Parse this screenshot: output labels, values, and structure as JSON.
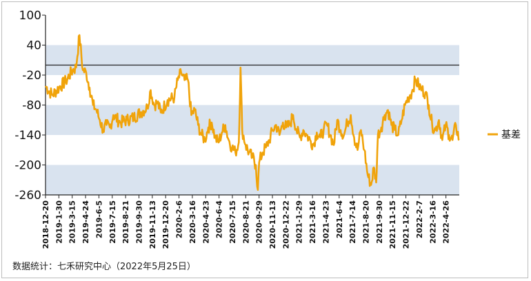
{
  "chart_data": {
    "type": "line",
    "title": "",
    "xlabel": "",
    "ylabel": "",
    "ylim": [
      -260,
      100
    ],
    "yticks": [
      100,
      40,
      -20,
      -80,
      -140,
      -200,
      -260
    ],
    "ref_line": 0,
    "grid": "alternating horizontal bands",
    "legend_position": "right",
    "x_tick_labels": [
      "2018-12-20",
      "2019-1-30",
      "2019-3-15",
      "2019-4-24",
      "2019-6-5",
      "2019-7-15",
      "2019-8-21",
      "2019-9-30",
      "2019-11-13",
      "2019-12-20",
      "2020-2-6",
      "2020-3-16",
      "2020-4-23",
      "2020-6-4",
      "2020-7-15",
      "2020-8-21",
      "2020-9-29",
      "2020-11-13",
      "2020-12-22",
      "2021-1-29",
      "2021-3-16",
      "2021-4-23",
      "2021-6-4",
      "2021-7-14",
      "2021-8-20",
      "2021-9-30",
      "2021-11-15",
      "2021-12-22",
      "2022-2-7",
      "2022-3-16",
      "2022-4-26"
    ],
    "series": [
      {
        "name": "基差",
        "color": "#f0a30a",
        "anchors": [
          [
            0,
            -42
          ],
          [
            2,
            -60
          ],
          [
            4,
            -45
          ],
          [
            6,
            -32
          ],
          [
            8,
            -10
          ],
          [
            9,
            -5
          ],
          [
            10,
            60
          ],
          [
            11,
            -10
          ],
          [
            12,
            -15
          ],
          [
            13,
            -45
          ],
          [
            14,
            -80
          ],
          [
            15,
            -90
          ],
          [
            16,
            -110
          ],
          [
            17,
            -130
          ],
          [
            18,
            -120
          ],
          [
            19,
            -125
          ],
          [
            20,
            -100
          ],
          [
            22,
            -115
          ],
          [
            24,
            -110
          ],
          [
            26,
            -105
          ],
          [
            28,
            -95
          ],
          [
            30,
            -85
          ],
          [
            31,
            -50
          ],
          [
            32,
            -80
          ],
          [
            33,
            -75
          ],
          [
            34,
            -95
          ],
          [
            36,
            -70
          ],
          [
            38,
            -65
          ],
          [
            39,
            -30
          ],
          [
            40,
            -15
          ],
          [
            41,
            -30
          ],
          [
            42,
            -30
          ],
          [
            43,
            -100
          ],
          [
            44,
            -90
          ],
          [
            45,
            -120
          ],
          [
            46,
            -140
          ],
          [
            47,
            -150
          ],
          [
            48,
            -125
          ],
          [
            49,
            -115
          ],
          [
            50,
            -145
          ],
          [
            51,
            -155
          ],
          [
            52,
            -135
          ],
          [
            53,
            -120
          ],
          [
            54,
            -150
          ],
          [
            55,
            -165
          ],
          [
            56,
            -175
          ],
          [
            57,
            -155
          ],
          [
            57.5,
            -5
          ],
          [
            58,
            -130
          ],
          [
            59,
            -160
          ],
          [
            60,
            -175
          ],
          [
            61,
            -185
          ],
          [
            62,
            -200
          ],
          [
            62.6,
            -250
          ],
          [
            63,
            -195
          ],
          [
            64,
            -175
          ],
          [
            65,
            -165
          ],
          [
            66,
            -150
          ],
          [
            67,
            -130
          ],
          [
            68,
            -120
          ],
          [
            69,
            -140
          ],
          [
            70,
            -115
          ],
          [
            71,
            -125
          ],
          [
            72,
            -120
          ],
          [
            73,
            -100
          ],
          [
            74,
            -130
          ],
          [
            75,
            -145
          ],
          [
            76,
            -130
          ],
          [
            77,
            -140
          ],
          [
            78,
            -150
          ],
          [
            79,
            -160
          ],
          [
            80,
            -135
          ],
          [
            81,
            -145
          ],
          [
            82,
            -130
          ],
          [
            83,
            -120
          ],
          [
            84,
            -140
          ],
          [
            85,
            -160
          ],
          [
            86,
            -110
          ],
          [
            87,
            -130
          ],
          [
            88,
            -140
          ],
          [
            89,
            -115
          ],
          [
            90,
            -100
          ],
          [
            91,
            -145
          ],
          [
            92,
            -170
          ],
          [
            93,
            -130
          ],
          [
            94,
            -170
          ],
          [
            95,
            -220
          ],
          [
            96,
            -240
          ],
          [
            96.8,
            -205
          ],
          [
            97.5,
            -235
          ],
          [
            98,
            -140
          ],
          [
            99,
            -125
          ],
          [
            100,
            -100
          ],
          [
            101,
            -90
          ],
          [
            102,
            -120
          ],
          [
            103,
            -130
          ],
          [
            104,
            -140
          ],
          [
            105,
            -110
          ],
          [
            106,
            -80
          ],
          [
            107,
            -65
          ],
          [
            107.5,
            -60
          ],
          [
            108,
            -55
          ],
          [
            109,
            -30
          ],
          [
            110,
            -40
          ],
          [
            111,
            -50
          ],
          [
            112,
            -55
          ],
          [
            113,
            -80
          ],
          [
            114,
            -120
          ],
          [
            115,
            -130
          ],
          [
            116,
            -110
          ],
          [
            117,
            -150
          ],
          [
            118,
            -120
          ],
          [
            119,
            -140
          ],
          [
            120,
            -150
          ],
          [
            121,
            -120
          ],
          [
            122,
            -150
          ]
        ]
      }
    ]
  },
  "legend": {
    "label": "基差"
  },
  "source_note": "数据统计：七禾研究中心（2022年5月25日）"
}
